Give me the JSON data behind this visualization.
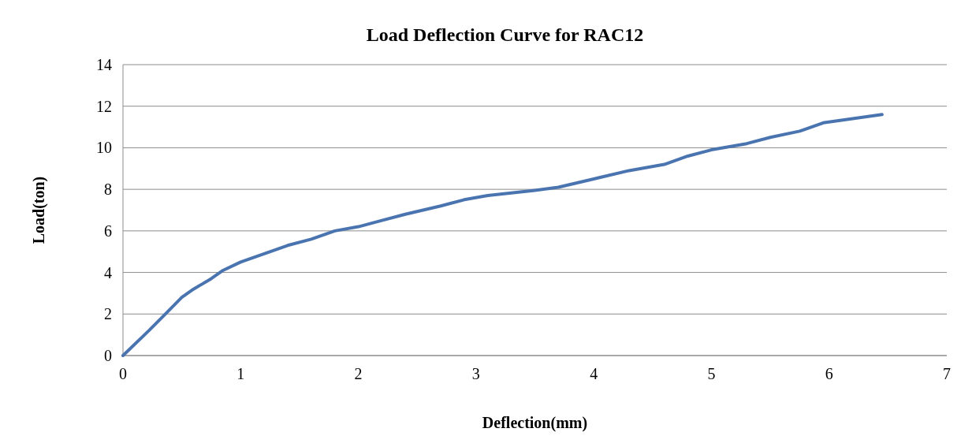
{
  "chart_data": {
    "type": "line",
    "title": "Load Deflection Curve for RAC12",
    "xlabel": "Deflection(mm)",
    "ylabel": "Load(ton)",
    "series": [
      {
        "color": "#4a74b0",
        "x": [
          0,
          0.22,
          0.36,
          0.5,
          0.6,
          0.75,
          0.85,
          1.0,
          1.2,
          1.4,
          1.6,
          1.8,
          2.0,
          2.2,
          2.4,
          2.7,
          2.9,
          3.1,
          3.5,
          3.7,
          4.0,
          4.3,
          4.6,
          4.8,
          5.0,
          5.3,
          5.5,
          5.75,
          5.95,
          6.2,
          6.45
        ],
        "values": [
          0,
          1.2,
          2.0,
          2.8,
          3.2,
          3.7,
          4.1,
          4.5,
          4.9,
          5.3,
          5.6,
          6.0,
          6.2,
          6.5,
          6.8,
          7.2,
          7.5,
          7.7,
          7.95,
          8.1,
          8.5,
          8.9,
          9.2,
          9.6,
          9.9,
          10.2,
          10.5,
          10.8,
          11.2,
          11.4,
          11.6
        ]
      }
    ],
    "xlim": [
      0,
      7
    ],
    "xticks": [
      0,
      1,
      2,
      3,
      4,
      5,
      6,
      7
    ],
    "ylim": [
      0,
      14
    ],
    "yticks": [
      0,
      2,
      4,
      6,
      8,
      10,
      12,
      14
    ],
    "grid": "y",
    "marker": "none",
    "line_style": "solid"
  }
}
